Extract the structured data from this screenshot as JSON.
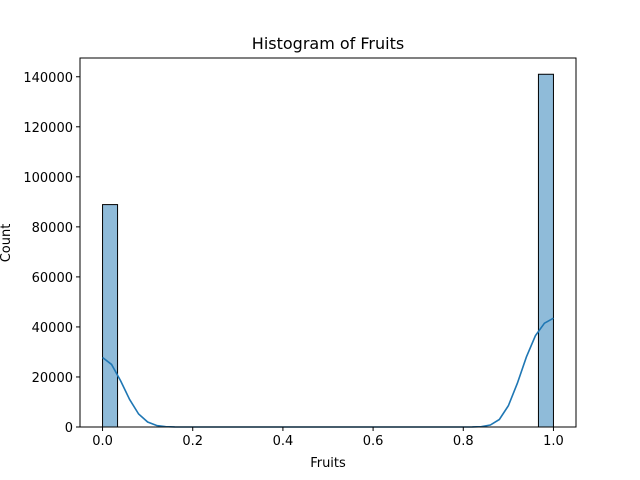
{
  "chart_data": {
    "type": "bar",
    "title": "Histogram of Fruits",
    "xlabel": "Fruits",
    "ylabel": "Count",
    "xlim": [
      -0.05,
      1.05
    ],
    "ylim": [
      0,
      147500
    ],
    "xticks": [
      0.0,
      0.2,
      0.4,
      0.6,
      0.8,
      1.0
    ],
    "xtick_labels": [
      "0.0",
      "0.2",
      "0.4",
      "0.6",
      "0.8",
      "1.0"
    ],
    "yticks": [
      0,
      20000,
      40000,
      60000,
      80000,
      100000,
      120000,
      140000
    ],
    "ytick_labels": [
      "0",
      "20000",
      "40000",
      "60000",
      "80000",
      "100000",
      "120000",
      "140000"
    ],
    "grid": false,
    "bins": [
      {
        "x0": 0.0,
        "x1": 0.0333,
        "count": 88900
      },
      {
        "x0": 0.9667,
        "x1": 1.0,
        "count": 141000
      }
    ],
    "kde": {
      "x": [
        0.0,
        0.02,
        0.04,
        0.06,
        0.08,
        0.1,
        0.12,
        0.14,
        0.16,
        0.18,
        0.2,
        0.3,
        0.4,
        0.5,
        0.6,
        0.7,
        0.8,
        0.82,
        0.84,
        0.86,
        0.88,
        0.9,
        0.92,
        0.94,
        0.96,
        0.98,
        1.0
      ],
      "y": [
        27800,
        25000,
        18500,
        11000,
        5200,
        2000,
        600,
        150,
        30,
        5,
        0,
        0,
        0,
        0,
        0,
        0,
        0,
        20,
        150,
        800,
        3000,
        8500,
        17500,
        28000,
        36500,
        41500,
        43500
      ]
    },
    "colors": {
      "bar_fill": "#1f77b4",
      "bar_fill_opacity": 0.5,
      "bar_edge": "#000000",
      "kde_line": "#1f77b4"
    }
  }
}
